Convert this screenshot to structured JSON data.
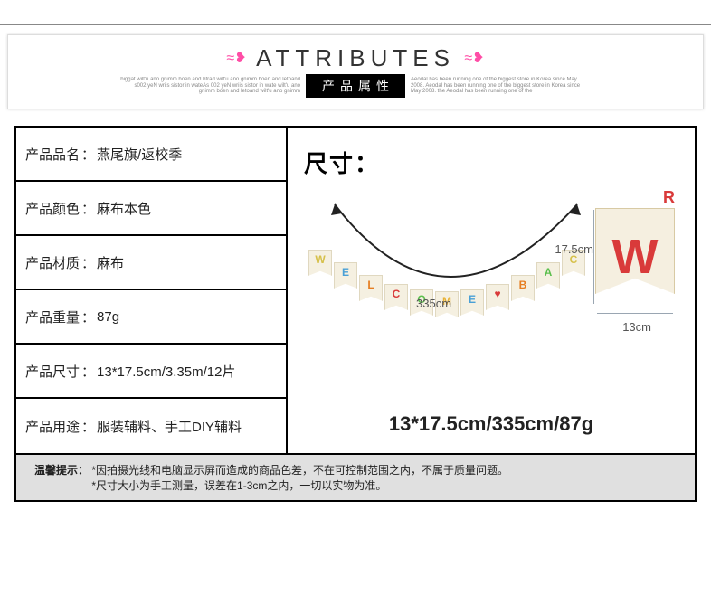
{
  "header": {
    "title": "ATTRIBUTES",
    "badge": "产品属性",
    "bow_glyph": "≈❥",
    "scribble_left": "biggat wilt'u ano gnimm boen and btrad wilt'u ano gnimm boen and letoand s002 yeN wriis sistor in wateAs 002 yeN wriis sistor in wate wilt'u ano gnimm boen and letoand wilt'u ano gnimm",
    "scribble_right": "Aeodal has been running one of the biggest store in Korea since May 2008. Aeodal has been running one of the biggest store in Korea since May 2008. the Aeodal has been running one of the"
  },
  "specs": [
    {
      "label": "产品品名",
      "value": "燕尾旗/返校季"
    },
    {
      "label": "产品颜色",
      "value": "麻布本色"
    },
    {
      "label": "产品材质",
      "value": "麻布"
    },
    {
      "label": "产品重量",
      "value": "87g"
    },
    {
      "label": "产品尺寸",
      "value": "13*17.5cm/3.35m/12片"
    },
    {
      "label": "产品用途",
      "value": "服装辅料、手工DIY辅料"
    }
  ],
  "diagram": {
    "size_title": "尺寸：",
    "length_label": "335cm",
    "flag_width_label": "13cm",
    "flag_height_label": "17.5cm",
    "big_flag_letter": "W",
    "corner_letter": "R",
    "flags": [
      {
        "ch": "W",
        "color": "#d6c04a",
        "off": 0
      },
      {
        "ch": "E",
        "color": "#4aa0d6",
        "off": 14
      },
      {
        "ch": "L",
        "color": "#e67e22",
        "off": 28
      },
      {
        "ch": "C",
        "color": "#d93a3a",
        "off": 38
      },
      {
        "ch": "O",
        "color": "#5bbf4d",
        "off": 44
      },
      {
        "ch": "M",
        "color": "#e8b030",
        "off": 46
      },
      {
        "ch": "E",
        "color": "#4aa0d6",
        "off": 44
      },
      {
        "ch": "♥",
        "color": "#d93a3a",
        "off": 38
      },
      {
        "ch": "B",
        "color": "#e67e22",
        "off": 28
      },
      {
        "ch": "A",
        "color": "#5bbf4d",
        "off": 14
      },
      {
        "ch": "C",
        "color": "#d6c04a",
        "off": 0
      }
    ],
    "summary": "13*17.5cm/335cm/87g"
  },
  "footer": {
    "label": "温馨提示：",
    "line1": "*因拍摄光线和电脑显示屏而造成的商品色差，不在可控制范围之内，不属于质量问题。",
    "line2": "*尺寸大小为手工测量，误差在1-3cm之内，一切以实物为准。"
  },
  "colors": {
    "accent_pink": "#ff4da6",
    "flag_bg": "#f5efe0",
    "flag_border": "#d8caa4",
    "red_letter": "#d93a3a",
    "footer_bg": "#e0e0e0"
  }
}
